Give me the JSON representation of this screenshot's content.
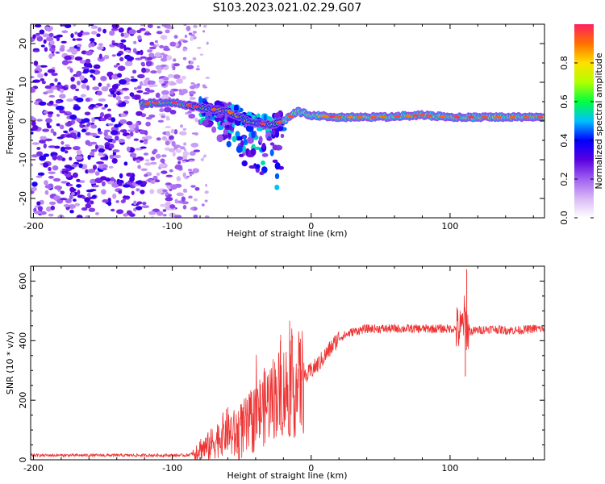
{
  "title": "S103.2023.021.02.29.G07",
  "chart_data": [
    {
      "type": "heatmap",
      "xlabel": "Height of straight line (km)",
      "ylabel": "Frequency (Hz)",
      "xlim": [
        -202,
        168
      ],
      "ylim": [
        -25,
        25
      ],
      "xticks": [
        -200,
        -100,
        0,
        100
      ],
      "yticks": [
        -20,
        -10,
        0,
        10,
        20
      ],
      "xtick_labels": [
        "-200",
        "-100",
        "0",
        "100"
      ],
      "ytick_labels": [
        "-20",
        "-10",
        "0",
        "10",
        "20"
      ],
      "colorbar": {
        "label": "Normalized spectral amplitude",
        "range": [
          0.0,
          1.0
        ],
        "ticks": [
          0.0,
          0.2,
          0.4,
          0.6,
          0.8
        ],
        "tick_labels": [
          "0.0",
          "0.2",
          "0.4",
          "0.6",
          "0.8"
        ],
        "colors": [
          "#ffffff",
          "#d9b8f5",
          "#a060f0",
          "#5a00e0",
          "#0000ff",
          "#00c0ff",
          "#00ff40",
          "#b0ff00",
          "#ffe000",
          "#ff7000",
          "#ff2060"
        ]
      },
      "ridge": [
        {
          "x": -120,
          "y": 4.5
        },
        {
          "x": -100,
          "y": 4.8
        },
        {
          "x": -80,
          "y": 3.5
        },
        {
          "x": -60,
          "y": 2.5
        },
        {
          "x": -45,
          "y": 0.0
        },
        {
          "x": -30,
          "y": -1.0
        },
        {
          "x": -20,
          "y": 0.0
        },
        {
          "x": -10,
          "y": 2.5
        },
        {
          "x": 0,
          "y": 1.5
        },
        {
          "x": 20,
          "y": 1.0
        },
        {
          "x": 50,
          "y": 1.0
        },
        {
          "x": 80,
          "y": 1.5
        },
        {
          "x": 100,
          "y": 1.0
        },
        {
          "x": 130,
          "y": 1.0
        },
        {
          "x": 168,
          "y": 1.0
        }
      ]
    },
    {
      "type": "line",
      "xlabel": "Height of straight line (km)",
      "ylabel": "SNR (10 * v/v)",
      "xlim": [
        -202,
        168
      ],
      "ylim": [
        0,
        650
      ],
      "xticks": [
        -200,
        -100,
        0,
        100
      ],
      "yticks": [
        0,
        200,
        400,
        600
      ],
      "xtick_labels": [
        "-200",
        "-100",
        "0",
        "100"
      ],
      "ytick_labels": [
        "0",
        "200",
        "400",
        "600"
      ],
      "color": "#ee3333",
      "series": [
        {
          "name": "SNR",
          "x": [
            -202,
            -180,
            -160,
            -140,
            -120,
            -100,
            -90,
            -85,
            -80,
            -75,
            -70,
            -65,
            -60,
            -55,
            -50,
            -45,
            -40,
            -35,
            -30,
            -25,
            -20,
            -15,
            -10,
            -5,
            0,
            5,
            10,
            15,
            20,
            25,
            30,
            35,
            40,
            50,
            60,
            70,
            80,
            90,
            100,
            105,
            108,
            110,
            112,
            115,
            120,
            130,
            140,
            150,
            160,
            168
          ],
          "y": [
            15,
            15,
            15,
            15,
            15,
            15,
            15,
            20,
            40,
            40,
            60,
            80,
            100,
            80,
            100,
            110,
            150,
            170,
            200,
            220,
            230,
            240,
            250,
            270,
            300,
            320,
            350,
            380,
            410,
            420,
            430,
            435,
            440,
            440,
            440,
            440,
            440,
            440,
            440,
            440,
            430,
            480,
            440,
            430,
            435,
            440,
            435,
            435,
            440,
            440
          ]
        }
      ]
    }
  ]
}
